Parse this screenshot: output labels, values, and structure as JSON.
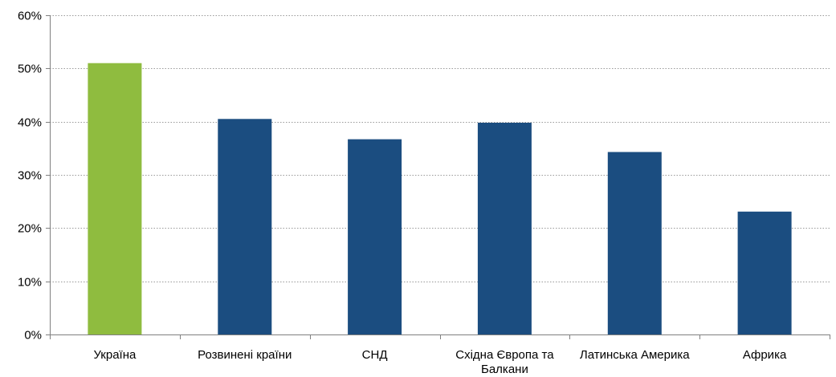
{
  "chart_data": {
    "type": "bar",
    "categories": [
      [
        "Україна"
      ],
      [
        "Розвинені країни"
      ],
      [
        "СНД"
      ],
      [
        "Східна Європа та",
        "Балкани"
      ],
      [
        "Латинська Америка"
      ],
      [
        "Африка"
      ]
    ],
    "values": [
      51,
      40.5,
      36.7,
      39.8,
      34.3,
      23.1
    ],
    "bar_colors": [
      "#8fbc3f",
      "#1b4d80",
      "#1b4d80",
      "#1b4d80",
      "#1b4d80",
      "#1b4d80"
    ],
    "y_ticks": [
      0,
      10,
      20,
      30,
      40,
      50,
      60
    ],
    "y_tick_labels": [
      "0%",
      "10%",
      "20%",
      "30%",
      "40%",
      "50%",
      "60%"
    ],
    "ylim": [
      0,
      60
    ],
    "grid": true,
    "grid_style": "dotted",
    "legend": "none",
    "title": "",
    "xlabel": "",
    "ylabel": ""
  }
}
